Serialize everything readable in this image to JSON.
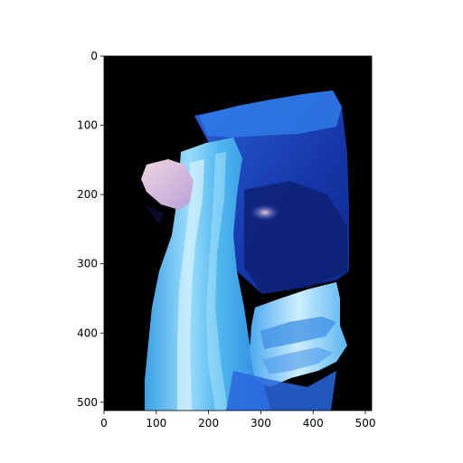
{
  "figure": {
    "background": "#ffffff",
    "axes_frame_color": "#000000",
    "image_background": "#000000"
  },
  "image": {
    "description_colors": {
      "deep_blue": "#1a3fb8",
      "mid_blue": "#2a6fe0",
      "light_blue": "#5fc4f0",
      "pale_blue": "#bfe8ff",
      "pinkish": "#e7b8c8"
    },
    "x_range": [
      0,
      512
    ],
    "y_range": [
      512,
      0
    ]
  },
  "axes": {
    "x_ticks": [
      "0",
      "100",
      "200",
      "300",
      "400",
      "500"
    ],
    "y_ticks": [
      "0",
      "100",
      "200",
      "300",
      "400",
      "500"
    ]
  }
}
